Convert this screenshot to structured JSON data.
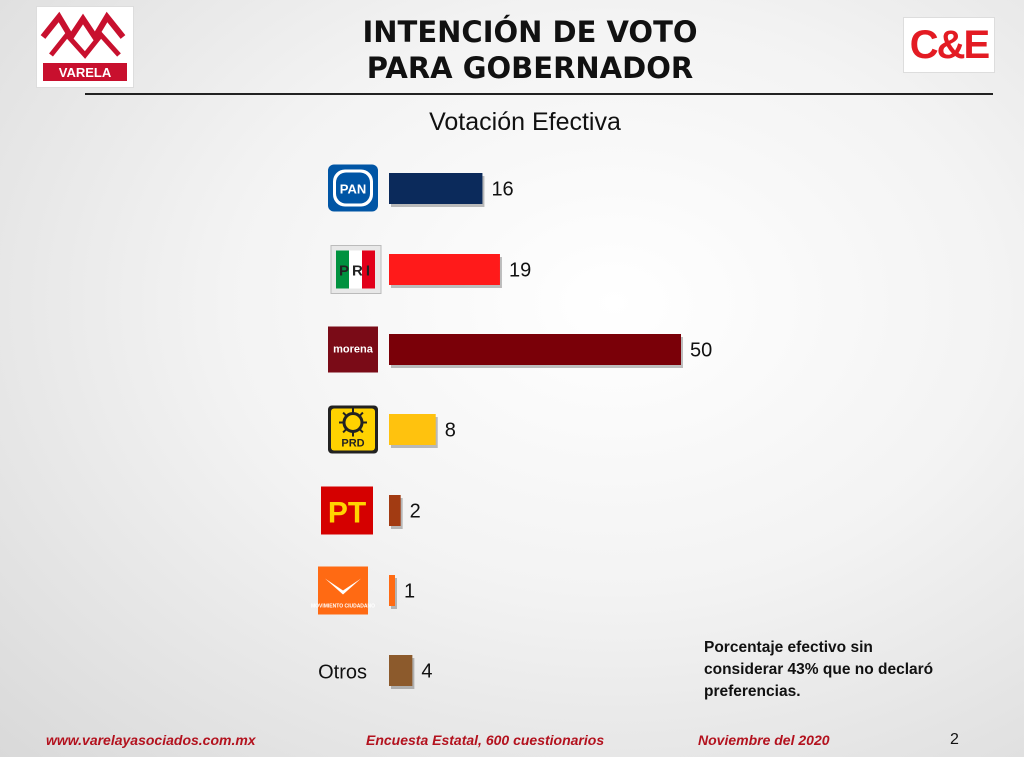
{
  "header": {
    "title_line1": "INTENCIÓN DE VOTO",
    "title_line2": "PARA GOBERNADOR",
    "subtitle": "Votación Efectiva",
    "logo_left_text": "VARELA",
    "logo_right_text": "C&E"
  },
  "chart_data": {
    "type": "bar",
    "orientation": "horizontal",
    "categories": [
      "PAN",
      "PRI",
      "morena",
      "PRD",
      "PT",
      "MC",
      "Otros"
    ],
    "category_labels": [
      "",
      "",
      "",
      "",
      "",
      "",
      "Otros"
    ],
    "values": [
      16,
      19,
      50,
      8,
      2,
      1,
      4
    ],
    "value_labels": [
      "16",
      "19",
      "50",
      "8",
      "2",
      "1",
      "4"
    ],
    "colors": [
      "#0b2a5b",
      "#ff1a1a",
      "#7a0008",
      "#ffc20e",
      "#a23b12",
      "#ff6a13",
      "#8c5a2c"
    ],
    "logo_texts": [
      "PAN",
      "PRI",
      "morena",
      "PRD",
      "PT",
      "MOVIMIENTO CIUDADANO",
      ""
    ],
    "xlim": [
      0,
      50
    ],
    "grid": false,
    "legend": "none"
  },
  "note": {
    "text_line1": "Porcentaje efectivo sin",
    "text_line2": "considerar 43% que no declaró",
    "text_line3": "preferencias."
  },
  "footer": {
    "website": "www.varelayasociados.com.mx",
    "survey": "Encuesta Estatal, 600 cuestionarios",
    "date": "Noviembre del 2020",
    "page": "2"
  }
}
